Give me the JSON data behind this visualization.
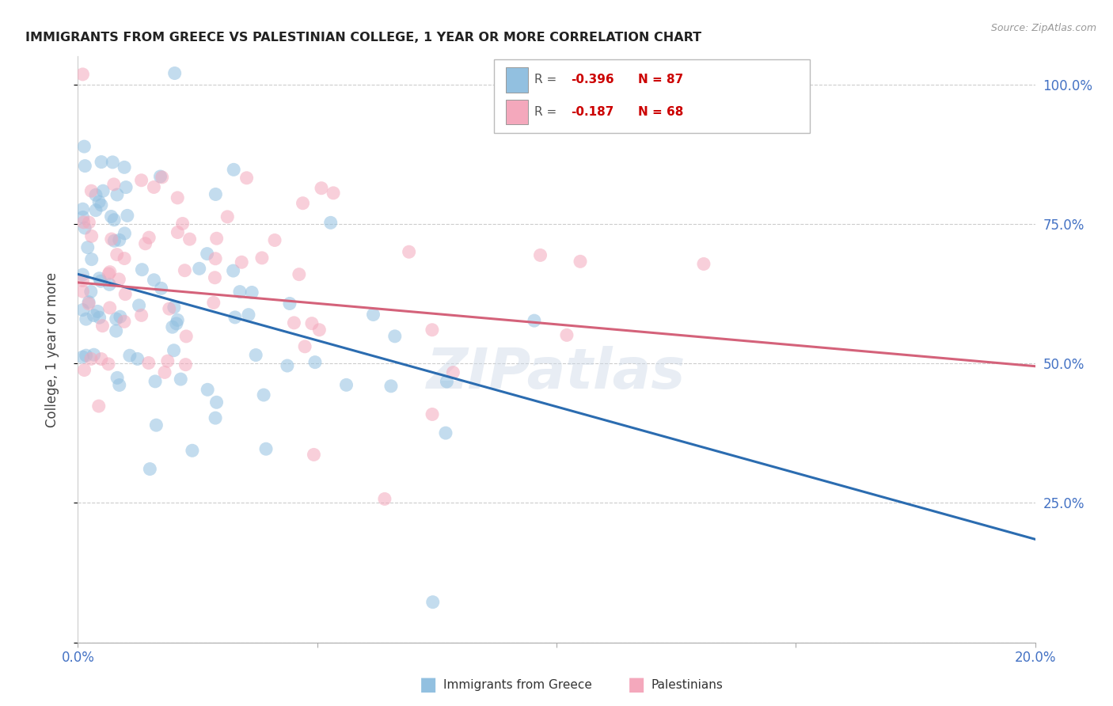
{
  "title": "IMMIGRANTS FROM GREECE VS PALESTINIAN COLLEGE, 1 YEAR OR MORE CORRELATION CHART",
  "source": "Source: ZipAtlas.com",
  "ylabel": "College, 1 year or more",
  "color_blue": "#92c0e0",
  "color_pink": "#f4a8bc",
  "line_color_blue": "#2b6cb0",
  "line_color_pink": "#d4627a",
  "watermark": "ZIPatlas",
  "R1": "-0.396",
  "N1": "87",
  "R2": "-0.187",
  "N2": "68",
  "xlim": [
    0.0,
    0.2
  ],
  "ylim": [
    0.0,
    1.05
  ],
  "yticks": [
    0.0,
    0.25,
    0.5,
    0.75,
    1.0
  ],
  "ytick_labels": [
    "",
    "25.0%",
    "50.0%",
    "75.0%",
    "100.0%"
  ],
  "blue_line_x0": 0.0,
  "blue_line_y0": 0.66,
  "blue_line_x1": 0.2,
  "blue_line_y1": 0.185,
  "pink_line_x0": 0.0,
  "pink_line_y0": 0.645,
  "pink_line_x1": 0.2,
  "pink_line_y1": 0.495
}
